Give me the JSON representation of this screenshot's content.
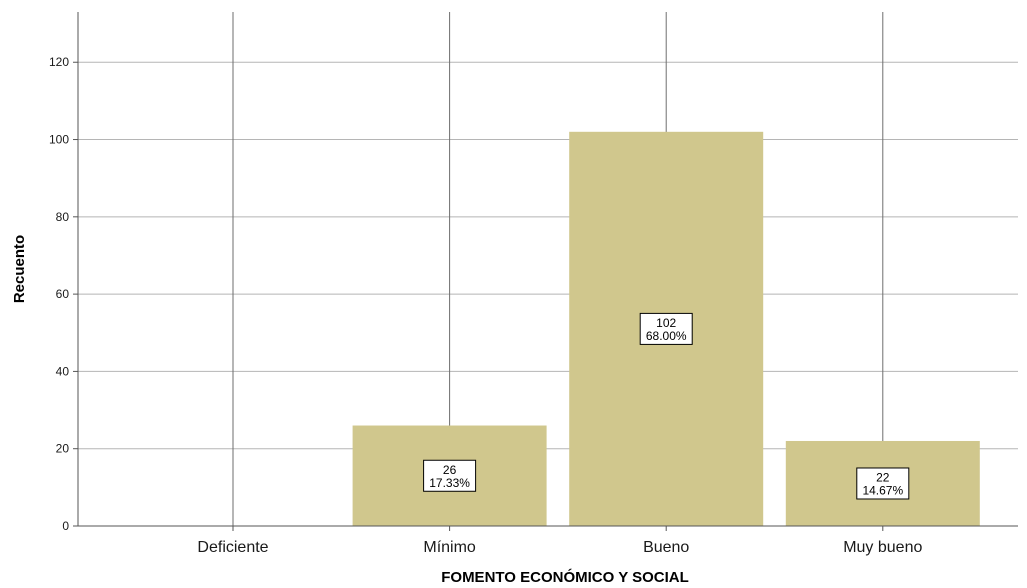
{
  "chart_data": {
    "type": "bar",
    "title": "",
    "xlabel": "FOMENTO ECONÓMICO Y SOCIAL",
    "ylabel": "Recuento",
    "categories": [
      "Deficiente",
      "Mínimo",
      "Bueno",
      "Muy bueno"
    ],
    "values": [
      0,
      26,
      102,
      22
    ],
    "percent_labels": [
      "",
      "17.33%",
      "68.00%",
      "14.67%"
    ],
    "value_labels": [
      "",
      "26",
      "102",
      "22"
    ],
    "yticks": [
      0,
      20,
      40,
      60,
      80,
      100,
      120
    ],
    "ylim": [
      0,
      133
    ],
    "grid": true,
    "legend": "none",
    "colors": {
      "bar": "#d0c78d",
      "grid": "#b5b5b5",
      "axis": "#555555",
      "label_box_border": "#000000",
      "label_box_fill": "#ffffff"
    }
  }
}
